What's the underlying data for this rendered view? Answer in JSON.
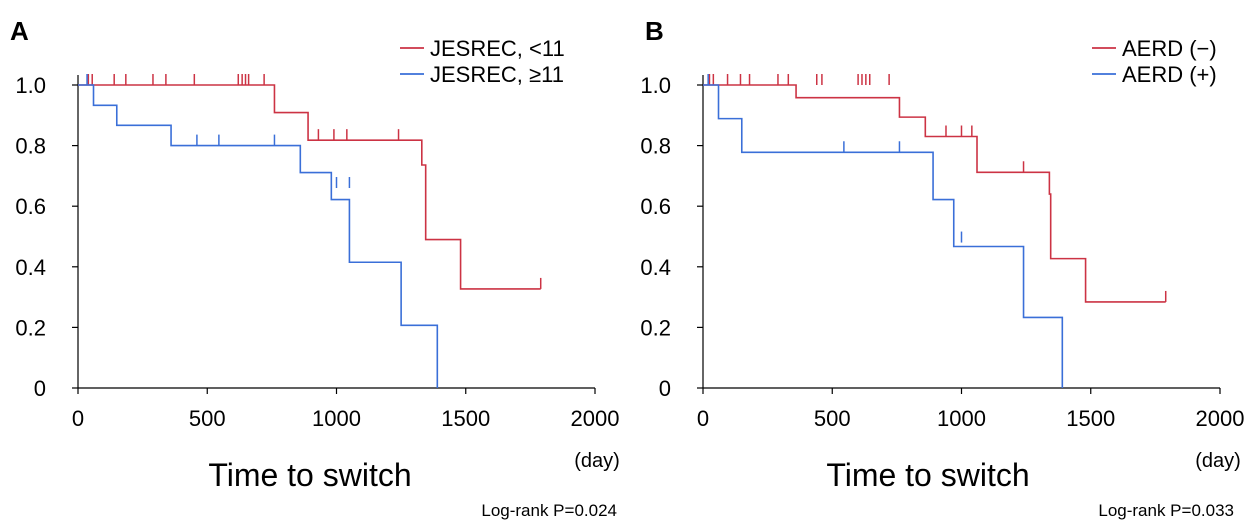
{
  "chart_data": [
    {
      "type": "line",
      "panel": "A",
      "xlabel": "Time to switch",
      "x_unit": "(day)",
      "ylabel": "",
      "xlim": [
        0,
        2000
      ],
      "ylim": [
        0,
        1.0
      ],
      "x_ticks": [
        "0",
        "500",
        "1000",
        "1500",
        "2000"
      ],
      "y_ticks": [
        "0",
        "0.2",
        "0.4",
        "0.6",
        "0.8",
        "1.0"
      ],
      "legend_position": "top-right",
      "grid": false,
      "stat_text": "Log-rank P=0.024",
      "series": [
        {
          "name": "JESREC, <11",
          "color": "#cc3344",
          "steps": [
            [
              0,
              1.0
            ],
            [
              760,
              0.909
            ],
            [
              890,
              0.818
            ],
            [
              1330,
              0.736
            ],
            [
              1345,
              0.49
            ],
            [
              1480,
              0.327
            ],
            [
              1790,
              0.327
            ]
          ],
          "censored": [
            [
              40,
              1.0
            ],
            [
              55,
              1.0
            ],
            [
              140,
              1.0
            ],
            [
              185,
              1.0
            ],
            [
              290,
              1.0
            ],
            [
              340,
              1.0
            ],
            [
              450,
              1.0
            ],
            [
              620,
              1.0
            ],
            [
              635,
              1.0
            ],
            [
              648,
              1.0
            ],
            [
              660,
              1.0
            ],
            [
              720,
              1.0
            ],
            [
              930,
              0.818
            ],
            [
              990,
              0.818
            ],
            [
              1040,
              0.818
            ],
            [
              1240,
              0.818
            ],
            [
              1790,
              0.327
            ]
          ]
        },
        {
          "name": "JESREC, ≥11",
          "color": "#3a6fd8",
          "steps": [
            [
              0,
              1.0
            ],
            [
              60,
              0.933
            ],
            [
              150,
              0.867
            ],
            [
              360,
              0.8
            ],
            [
              860,
              0.711
            ],
            [
              980,
              0.622
            ],
            [
              1050,
              0.415
            ],
            [
              1250,
              0.207
            ],
            [
              1390,
              0.0
            ]
          ],
          "censored": [
            [
              35,
              1.0
            ],
            [
              460,
              0.8
            ],
            [
              545,
              0.8
            ],
            [
              760,
              0.8
            ],
            [
              1000,
              0.66
            ],
            [
              1050,
              0.66
            ]
          ]
        }
      ]
    },
    {
      "type": "line",
      "panel": "B",
      "xlabel": "Time to switch",
      "x_unit": "(day)",
      "ylabel": "",
      "xlim": [
        0,
        2000
      ],
      "ylim": [
        0,
        1.0
      ],
      "x_ticks": [
        "0",
        "500",
        "1000",
        "1500",
        "2000"
      ],
      "y_ticks": [
        "0",
        "0.2",
        "0.4",
        "0.6",
        "0.8",
        "1.0"
      ],
      "legend_position": "top-right",
      "grid": false,
      "stat_text": "Log-rank P=0.033",
      "series": [
        {
          "name": "AERD (−)",
          "color": "#cc3344",
          "steps": [
            [
              0,
              1.0
            ],
            [
              360,
              0.958
            ],
            [
              760,
              0.894
            ],
            [
              860,
              0.83
            ],
            [
              1060,
              0.712
            ],
            [
              1340,
              0.64
            ],
            [
              1345,
              0.427
            ],
            [
              1480,
              0.284
            ],
            [
              1790,
              0.284
            ]
          ],
          "censored": [
            [
              25,
              1.0
            ],
            [
              40,
              1.0
            ],
            [
              95,
              1.0
            ],
            [
              145,
              1.0
            ],
            [
              180,
              1.0
            ],
            [
              290,
              1.0
            ],
            [
              330,
              1.0
            ],
            [
              440,
              1.0
            ],
            [
              460,
              1.0
            ],
            [
              600,
              1.0
            ],
            [
              615,
              1.0
            ],
            [
              630,
              1.0
            ],
            [
              645,
              1.0
            ],
            [
              720,
              1.0
            ],
            [
              940,
              0.83
            ],
            [
              1000,
              0.83
            ],
            [
              1040,
              0.83
            ],
            [
              1240,
              0.712
            ],
            [
              1790,
              0.284
            ]
          ]
        },
        {
          "name": "AERD (+)",
          "color": "#3a6fd8",
          "steps": [
            [
              0,
              1.0
            ],
            [
              60,
              0.889
            ],
            [
              150,
              0.778
            ],
            [
              890,
              0.622
            ],
            [
              970,
              0.467
            ],
            [
              1240,
              0.233
            ],
            [
              1390,
              0.0
            ]
          ],
          "censored": [
            [
              20,
              1.0
            ],
            [
              545,
              0.778
            ],
            [
              760,
              0.778
            ],
            [
              1000,
              0.48
            ]
          ]
        }
      ]
    }
  ]
}
